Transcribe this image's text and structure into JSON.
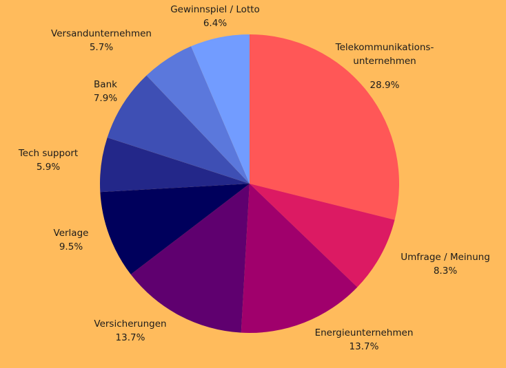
{
  "colors": {
    "background": "#FFBB5C"
  },
  "chart_data": {
    "type": "pie",
    "start_angle_deg": 0,
    "direction": "clockwise",
    "slices": [
      {
        "label": "Telekommunikations-\nunternehmen",
        "value": 28.9,
        "value_label": "28.9%",
        "color": "#FF5757"
      },
      {
        "label": "Umfrage / Meinung",
        "value": 8.3,
        "value_label": "8.3%",
        "color": "#DC1A63"
      },
      {
        "label": "Energieunternehmen",
        "value": 13.7,
        "value_label": "13.7%",
        "color": "#A0006C"
      },
      {
        "label": "Versicherungen",
        "value": 13.7,
        "value_label": "13.7%",
        "color": "#5F006F"
      },
      {
        "label": "Verlage",
        "value": 9.5,
        "value_label": "9.5%",
        "color": "#00005C"
      },
      {
        "label": "Tech support",
        "value": 5.9,
        "value_label": "5.9%",
        "color": "#232789"
      },
      {
        "label": "Bank",
        "value": 7.9,
        "value_label": "7.9%",
        "color": "#3E4FB4"
      },
      {
        "label": "Versandunternehmen",
        "value": 5.7,
        "value_label": "5.7%",
        "color": "#5B78DC"
      },
      {
        "label": "Gewinnspiel / Lotto",
        "value": 6.4,
        "value_label": "6.4%",
        "color": "#729CFF"
      }
    ]
  }
}
